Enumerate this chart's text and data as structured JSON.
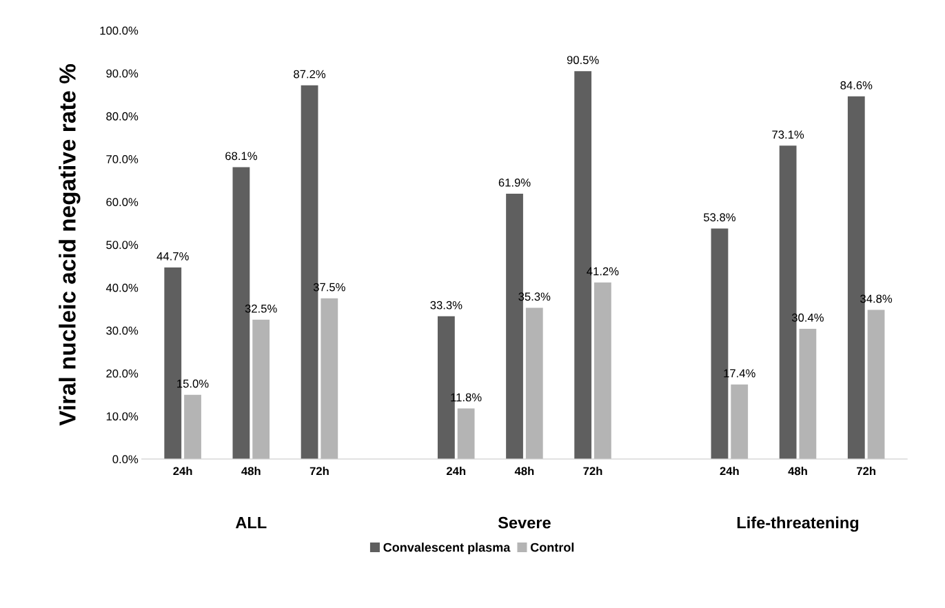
{
  "chart_data": {
    "type": "bar",
    "ylabel": "Viral nucleic acid negative rate %",
    "categories": [
      "24h",
      "48h",
      "72h",
      null,
      "24h",
      "48h",
      "72h",
      null,
      "24h",
      "48h",
      "72h"
    ],
    "series": [
      {
        "name": "Convalescent plasma",
        "color": "#5f5f5f",
        "values": [
          44.7,
          68.1,
          87.2,
          null,
          33.3,
          61.9,
          90.5,
          null,
          53.8,
          73.1,
          84.6
        ],
        "value_labels": [
          "44.7%",
          "68.1%",
          "87.2%",
          null,
          "33.3%",
          "61.9%",
          "90.5%",
          null,
          "53.8%",
          "73.1%",
          "84.6%"
        ]
      },
      {
        "name": "Control",
        "color": "#b4b4b4",
        "values": [
          15.0,
          32.5,
          37.5,
          null,
          11.8,
          35.3,
          41.2,
          null,
          17.4,
          30.4,
          34.8
        ],
        "value_labels": [
          "15.0%",
          "32.5%",
          "37.5%",
          null,
          "11.8%",
          "35.3%",
          "41.2%",
          null,
          "17.4%",
          "30.4%",
          "34.8%"
        ]
      }
    ],
    "annotations": [
      "ALL",
      "Severe",
      "Life-threatening"
    ],
    "ylim": [
      0,
      100
    ],
    "yticks": [
      {
        "value": 0,
        "label": "0.0%"
      },
      {
        "value": 10,
        "label": "10.0%"
      },
      {
        "value": 20,
        "label": "20.0%"
      },
      {
        "value": 30,
        "label": "30.0%"
      },
      {
        "value": 40,
        "label": "40.0%"
      },
      {
        "value": 50,
        "label": "50.0%"
      },
      {
        "value": 60,
        "label": "60.0%"
      },
      {
        "value": 70,
        "label": "70.0%"
      },
      {
        "value": 80,
        "label": "80.0%"
      },
      {
        "value": 90,
        "label": "90.0%"
      },
      {
        "value": 100,
        "label": "100.0%"
      }
    ],
    "grid": false,
    "legend": "bottom"
  }
}
